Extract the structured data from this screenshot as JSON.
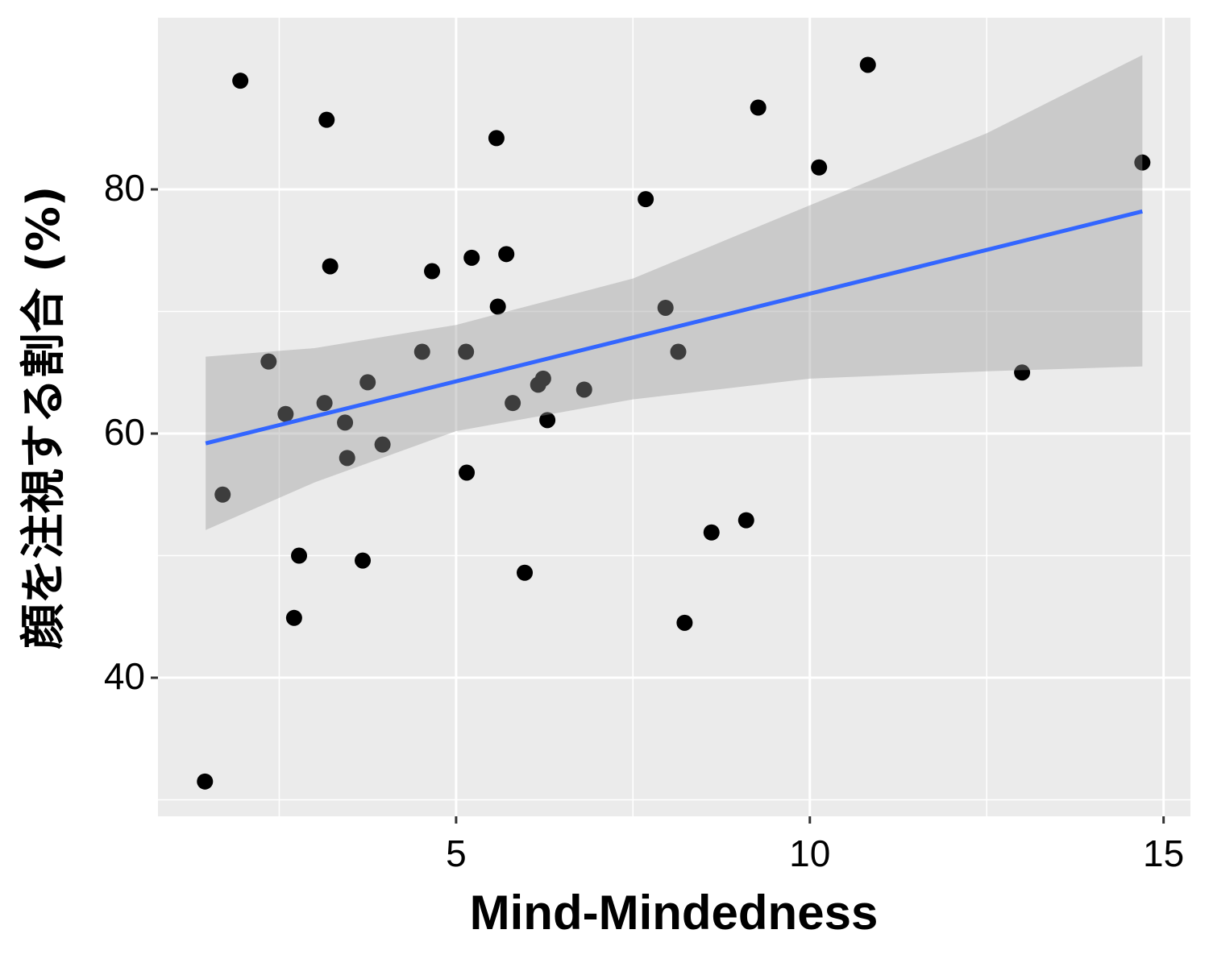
{
  "chart_data": {
    "type": "scatter",
    "x_label": "Mind-Mindedness",
    "y_label": "顔を注視する割合 (%)",
    "x": [
      1.95,
      3.17,
      1.45,
      1.7,
      2.35,
      2.59,
      2.78,
      2.71,
      3.14,
      3.22,
      3.43,
      3.46,
      3.75,
      3.68,
      3.96,
      4.52,
      4.66,
      5.14,
      5.15,
      5.22,
      5.57,
      5.59,
      5.71,
      5.8,
      5.97,
      6.16,
      6.23,
      6.29,
      6.81,
      7.68,
      7.96,
      8.14,
      8.23,
      8.61,
      9.1,
      9.27,
      10.13,
      10.82,
      13.0,
      14.7
    ],
    "values": [
      88.9,
      85.7,
      31.5,
      55.0,
      65.9,
      61.6,
      50.0,
      44.9,
      62.5,
      73.7,
      60.9,
      58.0,
      64.2,
      49.6,
      59.1,
      66.7,
      73.3,
      66.7,
      56.8,
      74.4,
      84.2,
      70.4,
      74.7,
      62.5,
      48.6,
      64.0,
      64.5,
      61.1,
      63.6,
      79.2,
      70.3,
      66.7,
      44.5,
      51.9,
      52.9,
      86.7,
      81.8,
      90.2,
      65.0,
      82.2
    ],
    "color": "#000000",
    "fit": {
      "x": [
        1.46,
        14.7
      ],
      "y": [
        59.2,
        78.2
      ],
      "color": "#3366ff"
    },
    "band": {
      "x": [
        1.46,
        3,
        5,
        7.5,
        10,
        12.5,
        14.7
      ],
      "upper": [
        66.3,
        67.0,
        68.9,
        72.7,
        78.7,
        84.6,
        91.0
      ],
      "lower": [
        52.1,
        56.0,
        60.2,
        62.8,
        64.5,
        65.1,
        65.5
      ],
      "color": "#999999"
    },
    "xlim": [
      0.786,
      15.38
    ],
    "ylim": [
      28.65,
      94.06
    ],
    "xticks": [
      5,
      10,
      15
    ],
    "yticks": [
      40,
      60,
      80
    ],
    "x_minor_grid": [
      2.5,
      7.5,
      12.5
    ],
    "y_minor_grid": [
      30,
      50,
      70
    ],
    "grid": true
  }
}
